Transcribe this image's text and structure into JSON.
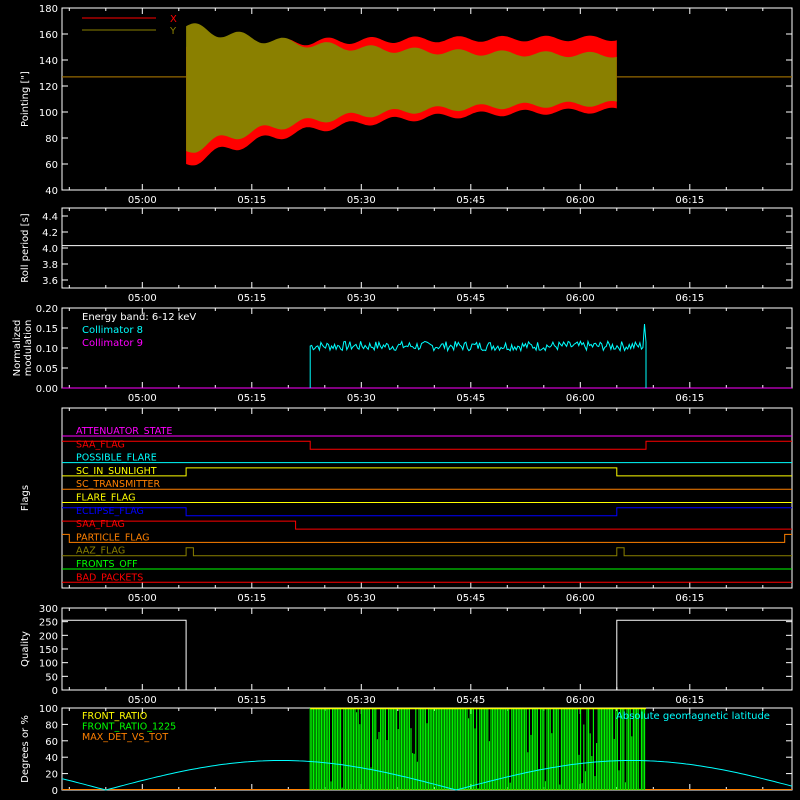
{
  "chart_data": [
    {
      "type": "line",
      "id": "pointing",
      "ylabel": "Pointing [\"]",
      "ylim": [
        40,
        180
      ],
      "yticks": [
        40,
        60,
        80,
        100,
        120,
        140,
        160,
        180
      ],
      "xtick_labels": [
        "05:00",
        "05:15",
        "05:30",
        "05:45",
        "06:00",
        "06:15"
      ],
      "legend": [
        {
          "name": "X",
          "color": "#ff0000"
        },
        {
          "name": "Y",
          "color": "#8a8000"
        }
      ],
      "series": [
        {
          "name": "X",
          "color": "#ff0000",
          "baseline": 127,
          "start": "05:06",
          "end": "06:05",
          "upper_start": 150,
          "upper_end": 157,
          "lower_start": 60,
          "lower_end": 103
        },
        {
          "name": "Y",
          "color": "#8a8000",
          "baseline": 127,
          "start": "05:06",
          "end": "06:05",
          "upper_start": 166,
          "upper_end": 143,
          "lower_start": 70,
          "lower_end": 108
        }
      ]
    },
    {
      "type": "line",
      "id": "roll",
      "ylabel": "Roll period [s]",
      "ylim": [
        3.5,
        4.5
      ],
      "yticks": [
        3.6,
        3.8,
        4.0,
        4.2,
        4.4
      ],
      "xtick_labels": [
        "05:00",
        "05:15",
        "05:30",
        "05:45",
        "06:00",
        "06:15"
      ],
      "series": [
        {
          "name": "Roll period",
          "color": "#ffffff",
          "value": 4.03
        }
      ]
    },
    {
      "type": "line",
      "id": "modulation",
      "ylabel": "Normalized modulation",
      "ylim": [
        0,
        0.2
      ],
      "yticks": [
        0.0,
        0.05,
        0.1,
        0.15,
        0.2
      ],
      "xtick_labels": [
        "05:00",
        "05:15",
        "05:30",
        "05:45",
        "06:00",
        "06:15"
      ],
      "annotation": "Energy band: 6-12 keV",
      "legend": [
        {
          "name": "Collimator 8",
          "color": "#00ffff"
        },
        {
          "name": "Collimator 9",
          "color": "#ff00ff"
        }
      ],
      "series": [
        {
          "name": "Collimator 8",
          "color": "#00ffff",
          "start": "05:23",
          "end": "06:09",
          "mean": 0.105,
          "jitter": 0.012
        },
        {
          "name": "Collimator 9",
          "color": "#ff00ff",
          "value": 0.0
        }
      ]
    },
    {
      "type": "line",
      "id": "flags",
      "ylabel": "Flags",
      "xtick_labels": [
        "05:00",
        "05:15",
        "05:30",
        "05:45",
        "06:00",
        "06:15"
      ],
      "flags": [
        {
          "name": "ATTENUATOR_STATE",
          "color": "#ff00ff",
          "segments": [
            [
              "04:49",
              "06:29",
              0
            ]
          ]
        },
        {
          "name": "SAA_FLAG",
          "color": "#ff0000",
          "segments": [
            [
              "04:49",
              "05:23",
              1
            ],
            [
              "05:23",
              "06:09",
              0
            ],
            [
              "06:09",
              "06:29",
              1
            ]
          ]
        },
        {
          "name": "POSSIBLE_FLARE",
          "color": "#00ffff",
          "segments": [
            [
              "04:49",
              "06:29",
              0
            ]
          ]
        },
        {
          "name": "SC_IN_SUNLIGHT",
          "color": "#ffff00",
          "segments": [
            [
              "04:49",
              "05:06",
              0
            ],
            [
              "05:06",
              "06:05",
              1
            ],
            [
              "06:05",
              "06:29",
              0
            ]
          ]
        },
        {
          "name": "SC_TRANSMITTER",
          "color": "#ff8000",
          "segments": [
            [
              "04:49",
              "06:29",
              0
            ]
          ]
        },
        {
          "name": "FLARE_FLAG",
          "color": "#ffff00",
          "segments": [
            [
              "04:49",
              "06:29",
              0
            ]
          ]
        },
        {
          "name": "ECLIPSE_FLAG",
          "color": "#0000ff",
          "segments": [
            [
              "04:49",
              "05:06",
              1
            ],
            [
              "05:06",
              "06:05",
              0
            ],
            [
              "06:05",
              "06:29",
              1
            ]
          ]
        },
        {
          "name": "SAA_FLAG",
          "color": "#ff0000",
          "segments": [
            [
              "04:49",
              "05:21",
              1
            ],
            [
              "05:21",
              "06:29",
              0
            ]
          ]
        },
        {
          "name": "PARTICLE_FLAG",
          "color": "#ff8000",
          "segments": [
            [
              "04:49",
              "04:50",
              1
            ],
            [
              "04:50",
              "06:28",
              0
            ],
            [
              "06:28",
              "06:29",
              1
            ]
          ]
        },
        {
          "name": "AAZ_FLAG",
          "color": "#8a8000",
          "segments": [
            [
              "04:49",
              "05:06",
              0
            ],
            [
              "05:06",
              "05:07",
              1
            ],
            [
              "05:07",
              "06:05",
              0
            ],
            [
              "06:05",
              "06:06",
              1
            ],
            [
              "06:06",
              "06:29",
              0
            ]
          ]
        },
        {
          "name": "FRONTS_OFF",
          "color": "#00ff00",
          "segments": [
            [
              "04:49",
              "06:29",
              0
            ]
          ]
        },
        {
          "name": "BAD_PACKETS",
          "color": "#ff0000",
          "segments": [
            [
              "04:49",
              "06:29",
              0
            ]
          ]
        }
      ]
    },
    {
      "type": "line",
      "id": "quality",
      "ylabel": "Quality",
      "ylim": [
        0,
        300
      ],
      "yticks": [
        0,
        50,
        100,
        150,
        200,
        250,
        300
      ],
      "xtick_labels": [
        "05:00",
        "05:15",
        "05:30",
        "05:45",
        "06:00",
        "06:15"
      ],
      "series": [
        {
          "name": "Quality",
          "color": "#ffffff",
          "segments": [
            [
              "04:49",
              "05:06",
              255
            ],
            [
              "05:06",
              "06:05",
              0
            ],
            [
              "06:05",
              "06:29",
              255
            ]
          ]
        }
      ]
    },
    {
      "type": "line",
      "id": "ratios",
      "ylabel": "Degrees or %",
      "ylim": [
        0,
        100
      ],
      "yticks": [
        0,
        20,
        40,
        60,
        80,
        100
      ],
      "legend": [
        {
          "name": "FRONT_RATIO",
          "color": "#ffff00"
        },
        {
          "name": "FRONT_RATIO_1225",
          "color": "#00ff00"
        },
        {
          "name": "MAX_DET_VS_TOT",
          "color": "#ff8000"
        }
      ],
      "annotation": "Absolute geomagnetic latitude",
      "annotation_color": "#00ffff",
      "series": [
        {
          "name": "FRONT_RATIO",
          "color": "#ffff00",
          "start": "05:23",
          "end": "06:09",
          "value": 100
        },
        {
          "name": "FRONT_RATIO_1225",
          "color": "#00ff00",
          "start": "05:23",
          "end": "06:09",
          "value": 100
        },
        {
          "name": "MAX_DET_VS_TOT",
          "color": "#ff8000",
          "value": 0
        },
        {
          "name": "Absolute geomagnetic latitude",
          "color": "#00ffff",
          "amplitude": 36,
          "period_min": 48,
          "phase_zero": "04:55"
        }
      ]
    }
  ]
}
